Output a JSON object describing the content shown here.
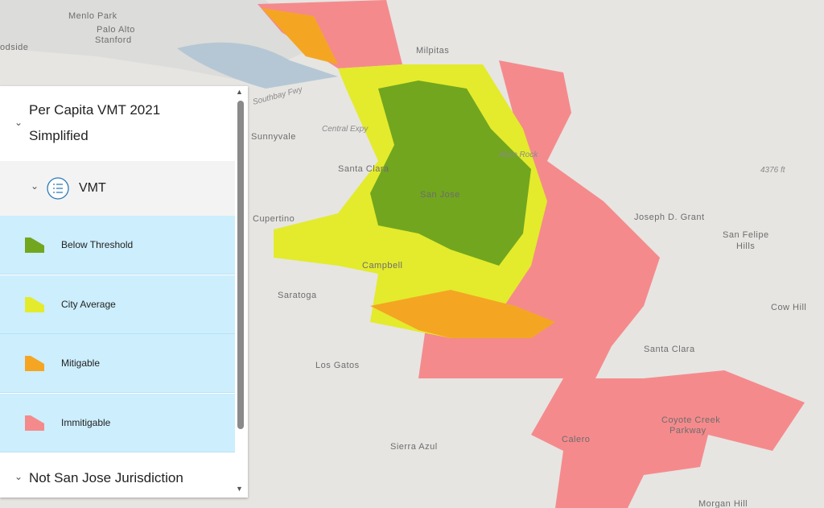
{
  "map_labels": [
    "Menlo Park",
    "Palo Alto",
    "Stanford",
    "Milpitas",
    "Sunnyvale",
    "Santa Clara",
    "San Jose",
    "Cupertino",
    "Campbell",
    "Saratoga",
    "Los Gatos",
    "Joseph D. Grant",
    "San Felipe",
    "Hills",
    "Cow Hill",
    "Santa Clara",
    "Sierra Azul",
    "Calero",
    "Coyote Creek",
    "Parkway",
    "Morgan Hill",
    "Southbay Fwy",
    "Central Expy",
    "4376 ft",
    "Alum Rock",
    "odside"
  ],
  "legend": {
    "layer_title_line1": "Per Capita VMT 2021",
    "layer_title_line2": "Simplified",
    "sublayer": "VMT",
    "items": [
      {
        "label": "Below Threshold",
        "color": "#72a61f"
      },
      {
        "label": "City Average",
        "color": "#e3eb2c"
      },
      {
        "label": "Mitigable",
        "color": "#f4a623"
      },
      {
        "label": "Immitigable",
        "color": "#f58a8c"
      }
    ],
    "other_layer": "Not San Jose Jurisdiction"
  }
}
